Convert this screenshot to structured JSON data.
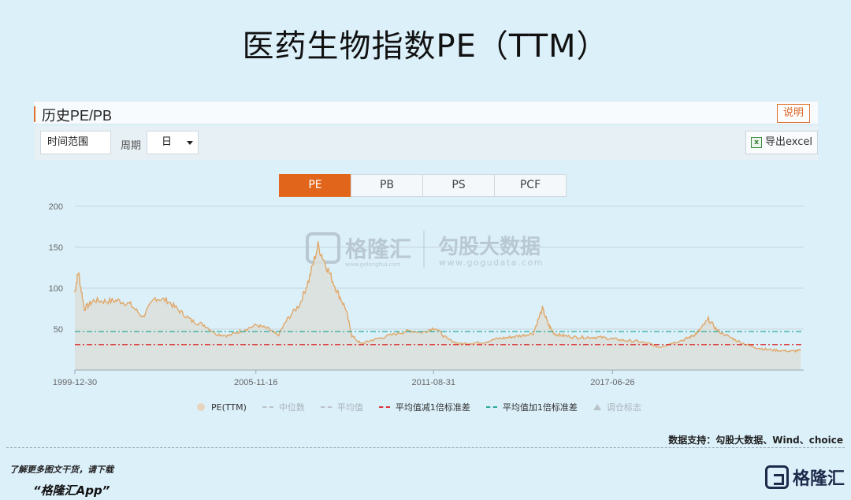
{
  "page": {
    "title": "医药生物指数PE（TTM）"
  },
  "panel": {
    "title": "历史PE/PB",
    "help_label": "说明"
  },
  "toolbar": {
    "time_range_label": "时间范围",
    "period_label": "周期",
    "period_value": "日",
    "export_label": "导出excel"
  },
  "tabs": [
    {
      "label": "PE",
      "active": true
    },
    {
      "label": "PB",
      "active": false
    },
    {
      "label": "PS",
      "active": false
    },
    {
      "label": "PCF",
      "active": false
    }
  ],
  "watermark": {
    "brand1": "格隆汇",
    "brand1_url": "www.gelonghui.com",
    "brand2": "勾股大数据",
    "brand2_url": "www.gogudata.com"
  },
  "legend": [
    {
      "label": "PE(TTM)",
      "kind": "area",
      "active": true
    },
    {
      "label": "中位数",
      "kind": "dash",
      "active": false
    },
    {
      "label": "平均值",
      "kind": "dash",
      "active": false
    },
    {
      "label": "平均值减1倍标准差",
      "kind": "dash",
      "active": true,
      "color": "#d9363a"
    },
    {
      "label": "平均值加1倍标准差",
      "kind": "dash",
      "active": true,
      "color": "#2aa89a"
    },
    {
      "label": "调仓标志",
      "kind": "triangle",
      "active": false
    }
  ],
  "footer": {
    "source": "数据支持：勾股大数据、Wind、choice",
    "promo_line1": "了解更多图文干货，请下载",
    "promo_line2": "“格隆汇App”",
    "logo_text": "格隆汇"
  },
  "chart_data": {
    "type": "area",
    "title": "",
    "xlabel": "",
    "ylabel": "",
    "ylim": [
      0,
      200
    ],
    "yticks": [
      50,
      100,
      150,
      200
    ],
    "xticks": [
      "1999-12-30",
      "2005-11-16",
      "2011-08-31",
      "2017-06-26"
    ],
    "grid": true,
    "legend_position": "bottom",
    "colors": {
      "line": "#e0a86a",
      "fill": "#dcdfd9",
      "minus_1sd": "#d9363a",
      "plus_1sd": "#2aa89a"
    },
    "series": [
      {
        "name": "PE(TTM)",
        "x": [
          1999.99,
          2000.1,
          2000.3,
          2000.6,
          2001.0,
          2001.4,
          2001.8,
          2002.2,
          2002.6,
          2003.0,
          2003.4,
          2003.8,
          2004.2,
          2004.6,
          2005.0,
          2005.4,
          2005.9,
          2006.3,
          2006.6,
          2006.9,
          2007.3,
          2007.6,
          2007.9,
          2008.2,
          2008.5,
          2008.8,
          2009.0,
          2009.3,
          2009.6,
          2010.0,
          2010.5,
          2010.9,
          2011.3,
          2011.7,
          2012.1,
          2012.5,
          2012.9,
          2013.3,
          2013.7,
          2014.1,
          2014.5,
          2014.9,
          2015.2,
          2015.4,
          2015.6,
          2015.9,
          2016.3,
          2016.7,
          2017.1,
          2017.5,
          2017.9,
          2018.3,
          2018.7,
          2019.0,
          2019.4,
          2019.8,
          2020.1,
          2020.3,
          2020.6,
          2020.9,
          2021.3,
          2021.7,
          2022.1,
          2022.5,
          2022.9,
          2023.3,
          2023.6
        ],
        "y": [
          95,
          120,
          75,
          85,
          84,
          85,
          80,
          65,
          88,
          85,
          72,
          60,
          55,
          44,
          42,
          48,
          55,
          50,
          42,
          62,
          80,
          110,
          152,
          125,
          98,
          75,
          42,
          32,
          36,
          40,
          45,
          48,
          46,
          52,
          38,
          32,
          33,
          34,
          38,
          40,
          42,
          45,
          75,
          55,
          44,
          42,
          40,
          40,
          40,
          38,
          36,
          35,
          32,
          28,
          33,
          37,
          42,
          48,
          62,
          48,
          40,
          33,
          28,
          25,
          24,
          23,
          24
        ]
      }
    ],
    "reference_lines": [
      {
        "name": "平均值加1倍标准差",
        "value": 47
      },
      {
        "name": "平均值减1倍标准差",
        "value": 31
      }
    ]
  }
}
